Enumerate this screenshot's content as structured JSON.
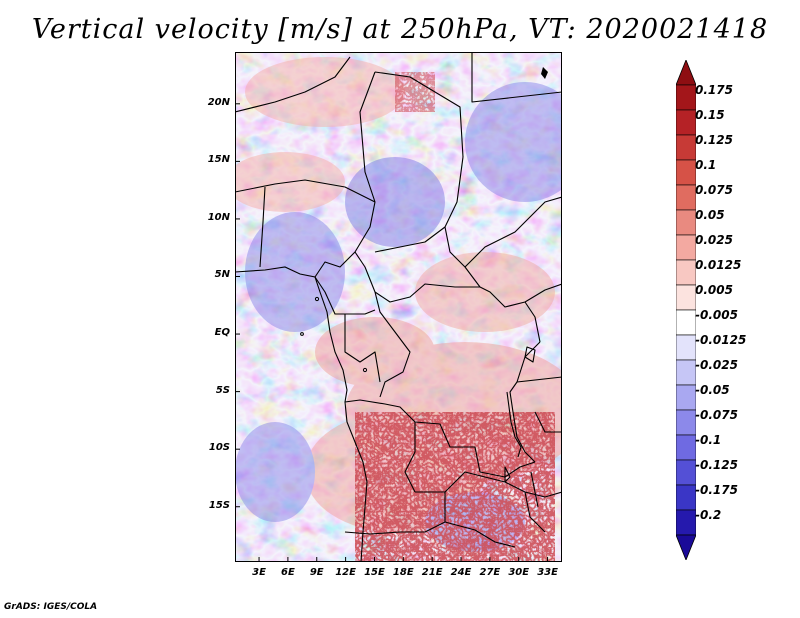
{
  "title": "Vertical velocity [m/s] at 250hPa, VT: 2020021418",
  "footer": "GrADS: IGES/COLA",
  "map": {
    "region": "Central Africa",
    "lat_range": [
      -19.8,
      24.5
    ],
    "lon_range": [
      0.5,
      34.5
    ],
    "lat_ticks": [
      {
        "value": 20,
        "label": "20N"
      },
      {
        "value": 15,
        "label": "15N"
      },
      {
        "value": 10,
        "label": "10N"
      },
      {
        "value": 5,
        "label": "5N"
      },
      {
        "value": 0,
        "label": "EQ"
      },
      {
        "value": -5,
        "label": "5S"
      },
      {
        "value": -10,
        "label": "10S"
      },
      {
        "value": -15,
        "label": "15S"
      }
    ],
    "lon_ticks": [
      {
        "value": 3,
        "label": "3E"
      },
      {
        "value": 6,
        "label": "6E"
      },
      {
        "value": 9,
        "label": "9E"
      },
      {
        "value": 12,
        "label": "12E"
      },
      {
        "value": 15,
        "label": "15E"
      },
      {
        "value": 18,
        "label": "18E"
      },
      {
        "value": 21,
        "label": "21E"
      },
      {
        "value": 24,
        "label": "24E"
      },
      {
        "value": 27,
        "label": "27E"
      },
      {
        "value": 30,
        "label": "30E"
      },
      {
        "value": 33,
        "label": "33E"
      }
    ]
  },
  "colorbar": {
    "levels": [
      {
        "label": "0.175",
        "color": "#a3161a"
      },
      {
        "label": "0.15",
        "color": "#b52226"
      },
      {
        "label": "0.125",
        "color": "#c73a36"
      },
      {
        "label": "0.1",
        "color": "#d65247"
      },
      {
        "label": "0.075",
        "color": "#e06c60"
      },
      {
        "label": "0.05",
        "color": "#e98a80"
      },
      {
        "label": "0.025",
        "color": "#f3a9a1"
      },
      {
        "label": "0.0125",
        "color": "#f8c8c2"
      },
      {
        "label": "0.005",
        "color": "#fce3df"
      },
      {
        "label": "-0.005",
        "color": "#ffffff"
      },
      {
        "label": "-0.0125",
        "color": "#e3e3fb"
      },
      {
        "label": "-0.025",
        "color": "#c6c6f6"
      },
      {
        "label": "-0.05",
        "color": "#a9a8f1"
      },
      {
        "label": "-0.075",
        "color": "#8c89ea"
      },
      {
        "label": "-0.1",
        "color": "#6f6ae2"
      },
      {
        "label": "-0.125",
        "color": "#5450d6"
      },
      {
        "label": "-0.175",
        "color": "#3a36c6"
      },
      {
        "label": "-0.2",
        "color": "#2519ad"
      }
    ],
    "top_cap_color": "#8e0e12",
    "bottom_cap_color": "#1a0a98"
  }
}
